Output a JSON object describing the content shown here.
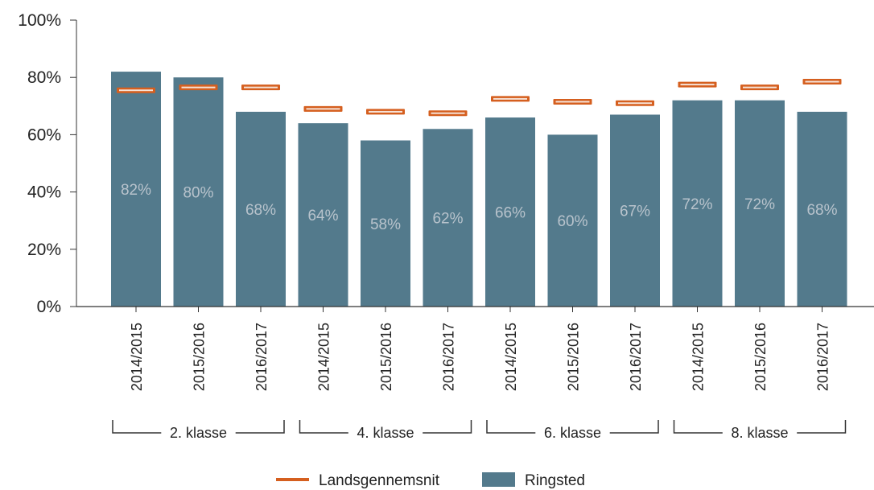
{
  "chart_data": {
    "type": "bar",
    "ylim": [
      0,
      100
    ],
    "yticks": [
      "0%",
      "20%",
      "40%",
      "60%",
      "80%",
      "100%"
    ],
    "categories": [
      "2014/2015",
      "2015/2016",
      "2016/2017",
      "2014/2015",
      "2015/2016",
      "2016/2017",
      "2014/2015",
      "2015/2016",
      "2016/2017",
      "2014/2015",
      "2015/2016",
      "2016/2017"
    ],
    "groups": [
      {
        "label": "2. klasse",
        "size": 3
      },
      {
        "label": "4. klasse",
        "size": 3
      },
      {
        "label": "6. klasse",
        "size": 3
      },
      {
        "label": "8. klasse",
        "size": 3
      }
    ],
    "series": [
      {
        "name": "Ringsted",
        "kind": "bar",
        "color": "#537a8c",
        "values": [
          82,
          80,
          68,
          64,
          58,
          62,
          66,
          60,
          67,
          72,
          72,
          68
        ],
        "labels": [
          "82%",
          "80%",
          "68%",
          "64%",
          "58%",
          "62%",
          "66%",
          "60%",
          "67%",
          "72%",
          "72%",
          "68%"
        ]
      },
      {
        "name": "Landsgennemsnit",
        "kind": "marker",
        "color": "#d55f1f",
        "values": [
          75.5,
          76.5,
          76.5,
          69,
          68,
          67.5,
          72.5,
          71.5,
          71,
          77.5,
          76.5,
          78.5
        ]
      }
    ],
    "legend": {
      "position": "bottom",
      "items": [
        "Landsgennemsnit",
        "Ringsted"
      ]
    },
    "grid": false
  }
}
